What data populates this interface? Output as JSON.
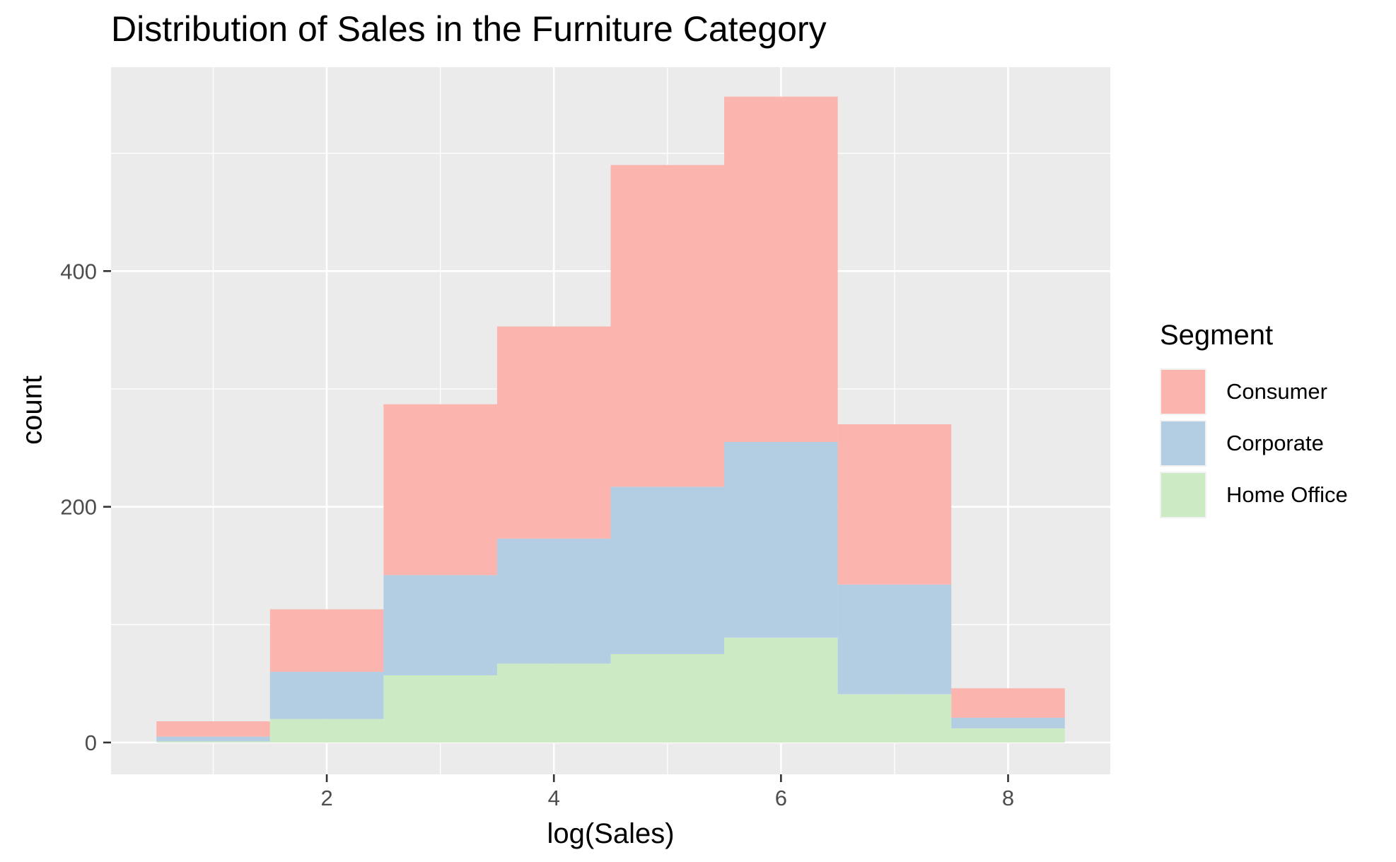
{
  "chart_data": {
    "type": "bar",
    "stacked": true,
    "title": "Distribution of Sales in the Furniture Category",
    "xlabel": "log(Sales)",
    "ylabel": "count",
    "bin_width": 1,
    "x": [
      1,
      2,
      3,
      4,
      5,
      6,
      7,
      8
    ],
    "xlim": [
      0.1,
      8.9
    ],
    "ylim": [
      -27,
      573
    ],
    "x_ticks": [
      2,
      4,
      6,
      8
    ],
    "y_ticks": [
      0,
      200,
      400
    ],
    "grid": true,
    "legend": {
      "title": "Segment",
      "position": "right"
    },
    "series": [
      {
        "name": "Home Office",
        "color": "#ccebc5",
        "values": [
          1,
          20,
          57,
          67,
          75,
          89,
          41,
          12
        ]
      },
      {
        "name": "Corporate",
        "color": "#b3cde3",
        "values": [
          4,
          40,
          85,
          106,
          142,
          166,
          93,
          9
        ]
      },
      {
        "name": "Consumer",
        "color": "#fbb4ae",
        "values": [
          13,
          53,
          145,
          180,
          273,
          293,
          136,
          25
        ]
      }
    ],
    "legend_order": [
      "Consumer",
      "Corporate",
      "Home Office"
    ]
  }
}
